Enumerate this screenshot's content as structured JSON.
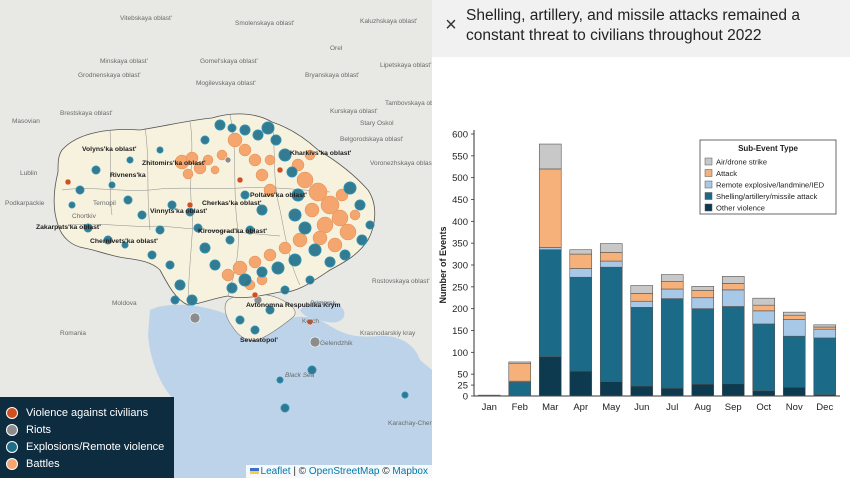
{
  "header": {
    "close_label": "×",
    "title": "Shelling, artillery, and missile attacks remained a constant threat to civilians throughout 2022"
  },
  "map": {
    "place_labels": [
      {
        "text": "Volyns'ka oblast'",
        "dark": true
      },
      {
        "text": "Zhitomirs'ka oblast'",
        "dark": true
      },
      {
        "text": "Rivnens'ka",
        "dark": true
      },
      {
        "text": "Ternopil",
        "dark": false
      },
      {
        "text": "Chortkiv",
        "dark": false
      },
      {
        "text": "Vinnyts'ka oblast'",
        "dark": true
      },
      {
        "text": "Cherkas'ka oblast'",
        "dark": true
      },
      {
        "text": "Kirovograd'ka oblast'",
        "dark": true
      },
      {
        "text": "Poltavs'ka oblast'",
        "dark": true
      },
      {
        "text": "Kharkivs'ka oblast'",
        "dark": true
      },
      {
        "text": "Chernivets'ka oblast'",
        "dark": true
      },
      {
        "text": "Zakarpats'ka oblast'",
        "dark": true
      },
      {
        "text": "Avtonomna Respublika Krym",
        "dark": true
      },
      {
        "text": "Sevastopol'",
        "dark": true
      },
      {
        "text": "Gomel'skaya oblast'",
        "dark": false
      },
      {
        "text": "Bryanskaya oblast'",
        "dark": false
      },
      {
        "text": "Kurskaya oblast'",
        "dark": false
      },
      {
        "text": "Belgorodskaya oblast'",
        "dark": false
      },
      {
        "text": "Voronezhskaya oblast'",
        "dark": false
      },
      {
        "text": "Lipetskaya oblast'",
        "dark": false
      },
      {
        "text": "Tambovskaya oblast'",
        "dark": false
      },
      {
        "text": "Rostovskaya oblast'",
        "dark": false
      },
      {
        "text": "Krasnodarskiy kray",
        "dark": false
      },
      {
        "text": "Mogilevskaya oblast'",
        "dark": false
      },
      {
        "text": "Minskaya oblast'",
        "dark": false
      },
      {
        "text": "Brestskaya oblast'",
        "dark": false
      },
      {
        "text": "Grodnenskaya oblast'",
        "dark": false
      },
      {
        "text": "Masovian",
        "dark": false
      },
      {
        "text": "Lublin",
        "dark": false
      },
      {
        "text": "Podkarpackie",
        "dark": false
      },
      {
        "text": "Moldova",
        "dark": false
      },
      {
        "text": "Romania",
        "dark": false
      },
      {
        "text": "Black Sea",
        "dark": false
      },
      {
        "text": "Primorsk",
        "dark": false
      },
      {
        "text": "Gelendzhik",
        "dark": false
      },
      {
        "text": "Kerch",
        "dark": false
      },
      {
        "text": "Stary Oskol",
        "dark": false
      },
      {
        "text": "Orel",
        "dark": false
      },
      {
        "text": "Kaluzhskaya oblast'",
        "dark": false
      },
      {
        "text": "Smolenskaya oblast'",
        "dark": false
      },
      {
        "text": "Vitebskaya oblast'",
        "dark": false
      },
      {
        "text": "Karachay-Cherkesskaya",
        "dark": false
      }
    ],
    "legend": [
      {
        "label": "Violence against civilians",
        "color": "#d2501f"
      },
      {
        "label": "Riots",
        "color": "#8c8c8c"
      },
      {
        "label": "Explosions/Remote violence",
        "color": "#1e6e88"
      },
      {
        "label": "Battles",
        "color": "#f5a66e"
      }
    ],
    "attribution": {
      "leaflet": "Leaflet",
      "sep1": " | © ",
      "osm": "OpenStreetMap",
      "sep2": " © ",
      "mapbox": "Mapbox"
    }
  },
  "chart_data": {
    "type": "bar",
    "stacked": true,
    "categories": [
      "Jan",
      "Feb",
      "Mar",
      "Apr",
      "May",
      "Jun",
      "Jul",
      "Aug",
      "Sep",
      "Oct",
      "Nov",
      "Dec"
    ],
    "series": [
      {
        "name": "Other violence",
        "color": "#0d3a4e",
        "values": [
          0,
          0,
          90,
          57,
          33,
          23,
          18,
          27,
          28,
          12,
          20,
          3
        ]
      },
      {
        "name": "Shelling/artillery/missile attack",
        "color": "#1b6a87",
        "values": [
          2,
          32,
          245,
          215,
          262,
          180,
          205,
          173,
          177,
          153,
          117,
          130
        ]
      },
      {
        "name": "Remote explosive/landmine/IED",
        "color": "#a8c8e8",
        "values": [
          0,
          2,
          5,
          20,
          14,
          14,
          22,
          25,
          38,
          30,
          38,
          20
        ]
      },
      {
        "name": "Attack",
        "color": "#f6b07a",
        "values": [
          0,
          40,
          180,
          33,
          20,
          18,
          17,
          17,
          15,
          13,
          10,
          5
        ]
      },
      {
        "name": "Air/drone strike",
        "color": "#c8c8c8",
        "values": [
          0,
          4,
          57,
          10,
          20,
          18,
          16,
          9,
          16,
          16,
          7,
          5
        ]
      }
    ],
    "ylabel": "Number of Events",
    "xlabel": "",
    "ylim": [
      0,
      600
    ],
    "yticks": [
      0,
      25,
      50,
      100,
      150,
      200,
      250,
      300,
      350,
      400,
      450,
      500,
      550,
      600
    ],
    "legend_title": "Sub-Event Type",
    "legend_order": [
      "Air/drone strike",
      "Attack",
      "Remote explosive/landmine/IED",
      "Shelling/artillery/missile attack",
      "Other violence"
    ],
    "legend_position": "top-right",
    "grid": false
  }
}
